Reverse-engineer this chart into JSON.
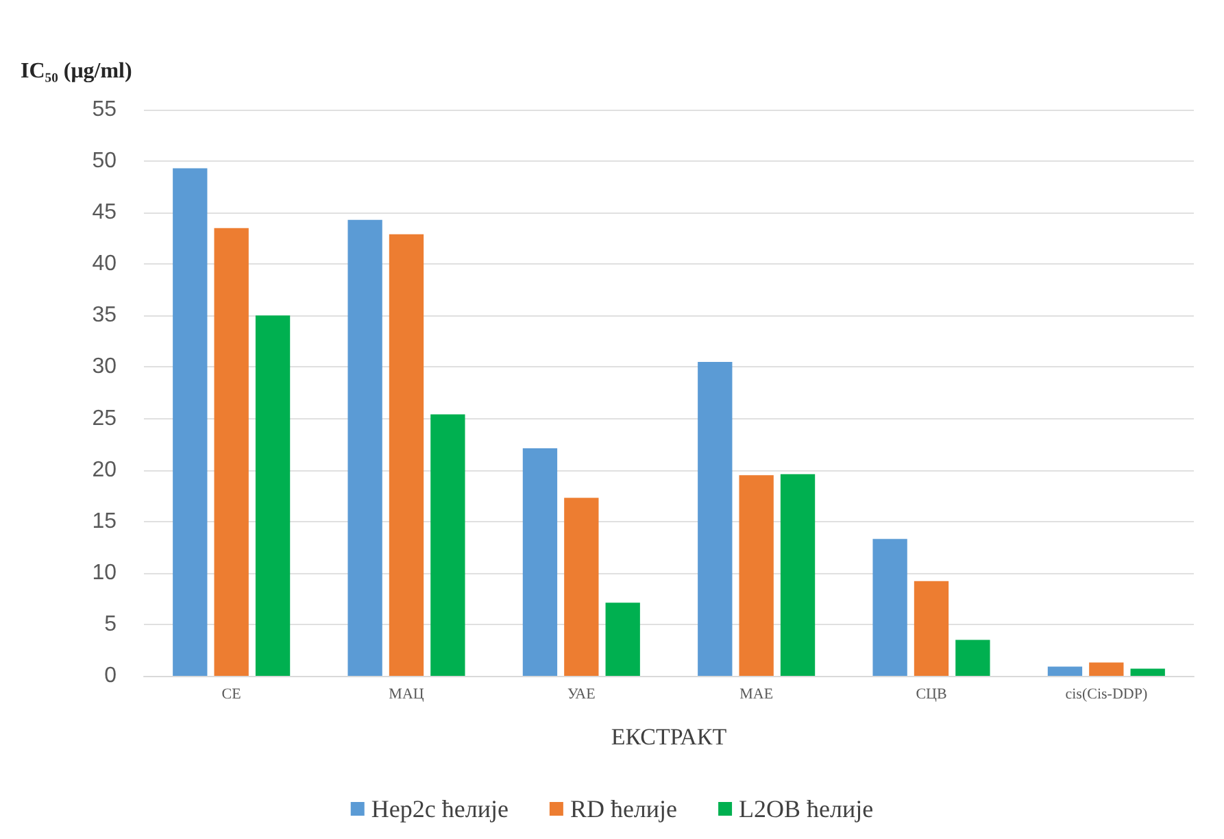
{
  "chart_data": {
    "type": "bar",
    "ylabel": "IC₅₀ (μg/ml)",
    "xlabel": "ЕКСТРАКТ",
    "categories": [
      "СЕ",
      "МАЦ",
      "УАЕ",
      "МАЕ",
      "СЦВ",
      "cis(Cis-DDP)"
    ],
    "series": [
      {
        "name": "Hep2c ћелије",
        "color": "#5b9bd5",
        "values": [
          49.3,
          44.3,
          22.1,
          30.5,
          13.3,
          0.9
        ]
      },
      {
        "name": "RD ћелије",
        "color": "#ed7d31",
        "values": [
          43.5,
          42.9,
          17.3,
          19.5,
          9.2,
          1.3
        ]
      },
      {
        "name": "L2OB ћелије",
        "color": "#00b050",
        "values": [
          35.0,
          25.4,
          7.1,
          19.6,
          3.5,
          0.7
        ]
      }
    ],
    "ylim": [
      0,
      55
    ],
    "yticks": [
      0,
      5,
      10,
      15,
      20,
      25,
      30,
      35,
      40,
      45,
      50,
      55
    ],
    "grid": "y",
    "legend": "bottom"
  }
}
